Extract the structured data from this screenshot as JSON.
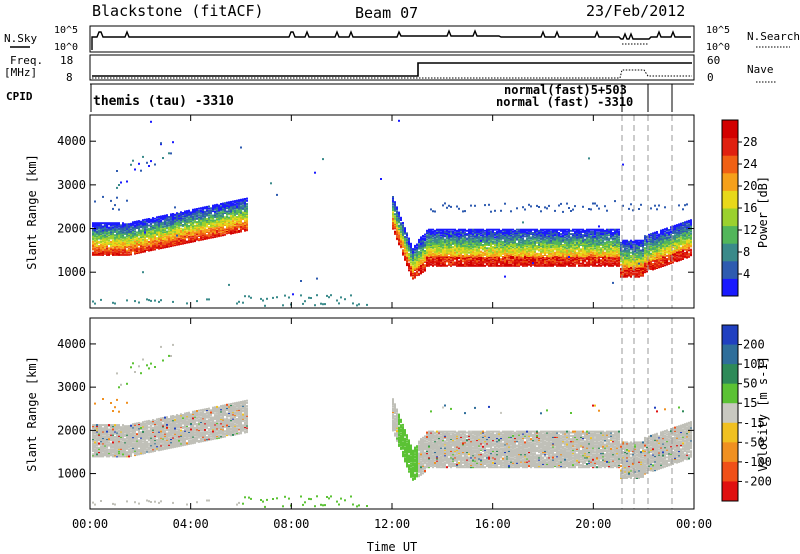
{
  "header": {
    "station": "Blackstone (fitACF)",
    "beam": "Beam 07",
    "date": "23/Feb/2012"
  },
  "top_panels": {
    "nsky_label": "N.Sky",
    "nsearch_label": "N.Search",
    "noise_ticks": [
      "10^5",
      "10^0"
    ],
    "freq_label_1": "Freq.",
    "freq_label_2": "[MHz]",
    "freq_ticks": [
      "18",
      "8"
    ],
    "nave_label": "Nave",
    "nave_ticks": [
      "60",
      "0"
    ],
    "cpid_label": "CPID",
    "cpid_entries": [
      {
        "text": "themis (tau) -3310",
        "start_hour": 0
      },
      {
        "text": "normal (fast) -3310",
        "start_hour": 20.5
      },
      {
        "text": "normal(fast)5+503",
        "start_hour": 20.5
      }
    ]
  },
  "chart_data": [
    {
      "type": "heatmap",
      "quantity": "Power",
      "ylabel": "Slant Range [km]",
      "xlabel": "",
      "xlim_hours": [
        0,
        24
      ],
      "ylim": [
        180,
        4600
      ],
      "yticks": [
        1000,
        2000,
        3000,
        4000
      ],
      "colorbar_label": "Power [dB]",
      "colorbar_ticks": [
        4,
        8,
        12,
        16,
        20,
        24,
        28
      ],
      "colorbar_colors": [
        "#1a1aff",
        "#2e5bb0",
        "#3a8a8a",
        "#52b65a",
        "#9bd12e",
        "#e8d81a",
        "#f5a01a",
        "#f06014",
        "#e02010",
        "#d20000"
      ]
    },
    {
      "type": "heatmap",
      "quantity": "Velocity",
      "ylabel": "Slant Range [km]",
      "xlabel": "Time UT",
      "xlim_hours": [
        0,
        24
      ],
      "ylim": [
        180,
        4600
      ],
      "yticks": [
        1000,
        2000,
        3000,
        4000
      ],
      "xtick_labels": [
        "00:00",
        "04:00",
        "08:00",
        "12:00",
        "16:00",
        "20:00",
        "00:00"
      ],
      "colorbar_label": "Velocity [m s-1]",
      "colorbar_ticks": [
        "200",
        "100",
        "50",
        "15",
        "-15",
        "-50",
        "-100",
        "-200"
      ],
      "colorbar_colors": [
        "#2040c0",
        "#2f6e9a",
        "#2e8a58",
        "#5bc234",
        "#c8c8c0",
        "#f0c020",
        "#f09020",
        "#f05018",
        "#e01010"
      ]
    }
  ],
  "colors": {
    "ground_scatter": "#c0c0b8",
    "fg": "#000000"
  }
}
